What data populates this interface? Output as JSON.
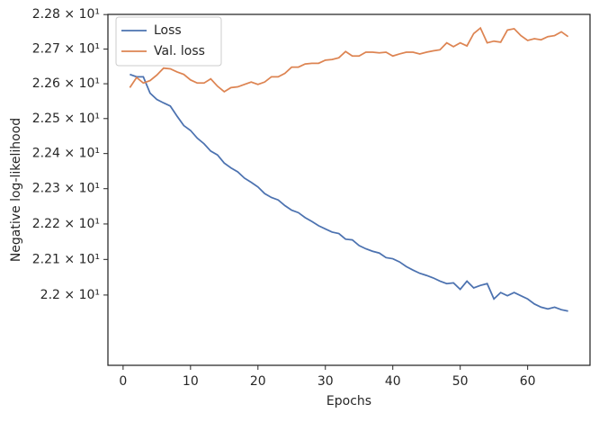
{
  "chart_data": {
    "type": "line",
    "x": [
      1,
      2,
      3,
      4,
      5,
      6,
      7,
      8,
      9,
      10,
      11,
      12,
      13,
      14,
      15,
      16,
      17,
      18,
      19,
      20,
      21,
      22,
      23,
      24,
      25,
      26,
      27,
      28,
      29,
      30,
      31,
      32,
      33,
      34,
      35,
      36,
      37,
      38,
      39,
      40,
      41,
      42,
      43,
      44,
      45,
      46,
      47,
      48,
      49,
      50,
      51,
      52,
      53,
      54,
      55,
      56,
      57,
      58,
      59,
      60,
      61,
      62,
      63,
      64,
      65,
      66
    ],
    "series": [
      {
        "name": "Loss",
        "color": "#4c72b0",
        "values": [
          22.627,
          22.62,
          22.62,
          22.573,
          22.555,
          22.545,
          22.536,
          22.507,
          22.48,
          22.466,
          22.444,
          22.428,
          22.407,
          22.396,
          22.373,
          22.359,
          22.348,
          22.33,
          22.318,
          22.305,
          22.286,
          22.275,
          22.268,
          22.252,
          22.239,
          22.232,
          22.218,
          22.207,
          22.195,
          22.186,
          22.177,
          22.173,
          22.157,
          22.155,
          22.139,
          22.13,
          22.123,
          22.118,
          22.105,
          22.102,
          22.093,
          22.08,
          22.07,
          22.061,
          22.055,
          22.048,
          22.039,
          22.032,
          22.034,
          22.016,
          22.039,
          22.02,
          22.027,
          22.032,
          21.989,
          22.007,
          21.998,
          22.007,
          21.998,
          21.989,
          21.975,
          21.966,
          21.961,
          21.966,
          21.959,
          21.955
        ]
      },
      {
        "name": "Val. loss",
        "color": "#dd8452",
        "values": [
          22.589,
          22.618,
          22.602,
          22.609,
          22.625,
          22.645,
          22.643,
          22.634,
          22.627,
          22.611,
          22.602,
          22.602,
          22.614,
          22.593,
          22.577,
          22.589,
          22.591,
          22.598,
          22.605,
          22.598,
          22.605,
          22.62,
          22.62,
          22.63,
          22.648,
          22.648,
          22.657,
          22.659,
          22.659,
          22.668,
          22.67,
          22.675,
          22.693,
          22.68,
          22.68,
          22.691,
          22.691,
          22.689,
          22.691,
          22.68,
          22.686,
          22.691,
          22.691,
          22.686,
          22.691,
          22.695,
          22.698,
          22.718,
          22.707,
          22.718,
          22.709,
          22.745,
          22.761,
          22.718,
          22.723,
          22.72,
          22.755,
          22.759,
          22.739,
          22.725,
          22.73,
          22.727,
          22.736,
          22.739,
          22.75,
          22.736
        ]
      }
    ],
    "xlabel": "Epochs",
    "ylabel": "Negative log-likelihood",
    "xlim": [
      -2.25,
      69.25
    ],
    "xticks": [
      0,
      10,
      20,
      30,
      40,
      50,
      60
    ],
    "ylim": [
      21.804,
      22.8005
    ],
    "yscale": "log",
    "yticks": [
      {
        "value": 22.0,
        "label": "2.2 × 10¹"
      },
      {
        "value": 22.1,
        "label": "2.21 × 10¹"
      },
      {
        "value": 22.2,
        "label": "2.22 × 10¹"
      },
      {
        "value": 22.3,
        "label": "2.23 × 10¹"
      },
      {
        "value": 22.4,
        "label": "2.24 × 10¹"
      },
      {
        "value": 22.5,
        "label": "2.25 × 10¹"
      },
      {
        "value": 22.6,
        "label": "2.26 × 10¹"
      },
      {
        "value": 22.7,
        "label": "2.27 × 10¹"
      },
      {
        "value": 22.8,
        "label": "2.28 × 10¹"
      }
    ],
    "legend": "upper left"
  }
}
